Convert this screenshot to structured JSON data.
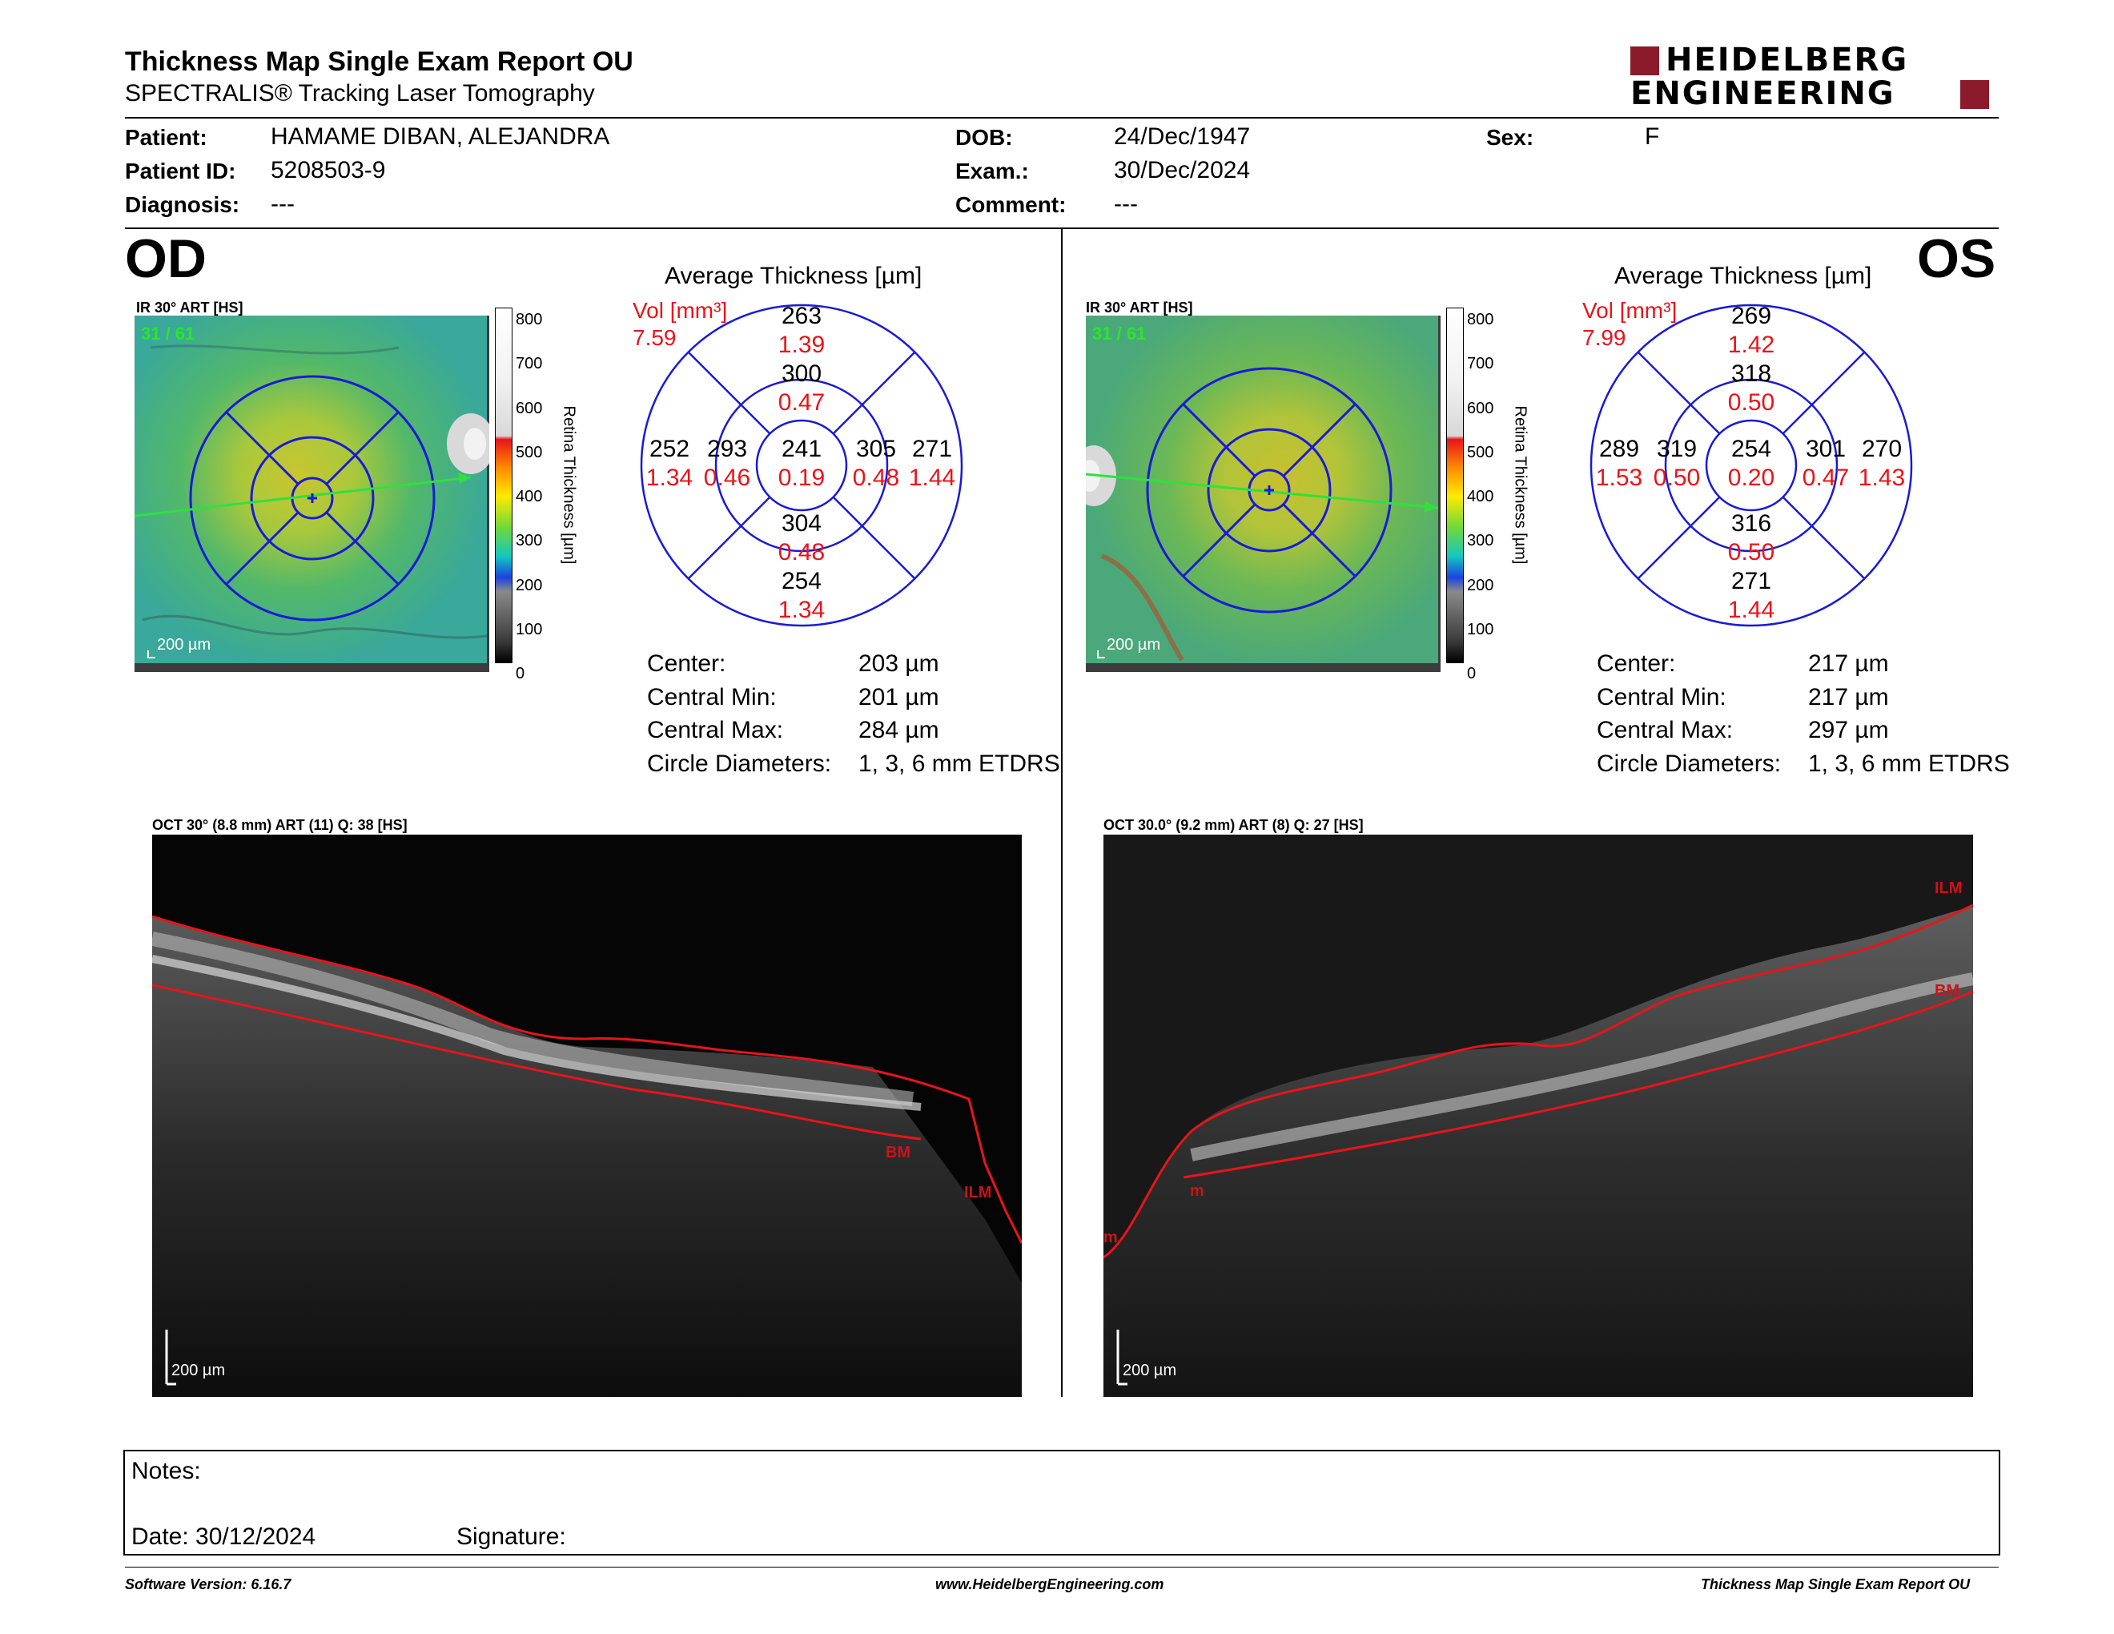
{
  "header": {
    "title": "Thickness Map Single Exam Report OU",
    "subtitle": "SPECTRALIS® Tracking Laser Tomography",
    "logo_line1": "HEIDELBERG",
    "logo_line2": "ENGINEERING",
    "brand_color": "#8b1a2b"
  },
  "patient": {
    "patient_label": "Patient:",
    "patient_value": "HAMAME DIBAN, ALEJANDRA",
    "id_label": "Patient ID:",
    "id_value": "5208503-9",
    "diagnosis_label": "Diagnosis:",
    "diagnosis_value": "---",
    "dob_label": "DOB:",
    "dob_value": "24/Dec/1947",
    "exam_label": "Exam.:",
    "exam_value": "30/Dec/2024",
    "comment_label": "Comment:",
    "comment_value": "---",
    "sex_label": "Sex:",
    "sex_value": "F"
  },
  "colorbar": {
    "ticks": [
      "800",
      "700",
      "600",
      "500",
      "400",
      "300",
      "200",
      "100",
      "0"
    ],
    "label": "Retina Thickness [µm]"
  },
  "od": {
    "eye": "OD",
    "ir_label": "IR 30° ART [HS]",
    "frame_label": "31 / 61",
    "scale": "200 µm",
    "avg_title": "Average Thickness [µm]",
    "vol_label": "Vol [mm³]",
    "vol_value": "7.59",
    "grid": {
      "center": {
        "t": "241",
        "v": "0.19"
      },
      "inner_sup": {
        "t": "300",
        "v": "0.47"
      },
      "inner_inf": {
        "t": "304",
        "v": "0.48"
      },
      "inner_left": {
        "t": "293",
        "v": "0.46"
      },
      "inner_right": {
        "t": "305",
        "v": "0.48"
      },
      "outer_sup": {
        "t": "263",
        "v": "1.39"
      },
      "outer_inf": {
        "t": "254",
        "v": "1.34"
      },
      "outer_left": {
        "t": "252",
        "v": "1.34"
      },
      "outer_right": {
        "t": "271",
        "v": "1.44"
      }
    },
    "stats": [
      {
        "label": "Center:",
        "value": "203 µm"
      },
      {
        "label": "Central Min:",
        "value": "201 µm"
      },
      {
        "label": "Central Max:",
        "value": "284 µm"
      },
      {
        "label": "Circle Diameters:",
        "value": "1, 3, 6 mm ETDRS"
      }
    ],
    "oct_label": "OCT 30° (8.8 mm) ART (11) Q: 38 [HS]",
    "oct_scale": "200 µm",
    "tag_bm": "BM",
    "tag_ilm": "ILM"
  },
  "os": {
    "eye": "OS",
    "ir_label": "IR 30° ART [HS]",
    "frame_label": "31 / 61",
    "scale": "200 µm",
    "avg_title": "Average Thickness [µm]",
    "vol_label": "Vol [mm³]",
    "vol_value": "7.99",
    "grid": {
      "center": {
        "t": "254",
        "v": "0.20"
      },
      "inner_sup": {
        "t": "318",
        "v": "0.50"
      },
      "inner_inf": {
        "t": "316",
        "v": "0.50"
      },
      "inner_left": {
        "t": "319",
        "v": "0.50"
      },
      "inner_right": {
        "t": "301",
        "v": "0.47"
      },
      "outer_sup": {
        "t": "269",
        "v": "1.42"
      },
      "outer_inf": {
        "t": "271",
        "v": "1.44"
      },
      "outer_left": {
        "t": "289",
        "v": "1.53"
      },
      "outer_right": {
        "t": "270",
        "v": "1.43"
      }
    },
    "stats": [
      {
        "label": "Center:",
        "value": "217 µm"
      },
      {
        "label": "Central Min:",
        "value": "217 µm"
      },
      {
        "label": "Central Max:",
        "value": "297 µm"
      },
      {
        "label": "Circle Diameters:",
        "value": "1, 3, 6 mm ETDRS"
      }
    ],
    "oct_label": "OCT 30.0° (9.2 mm) ART (8) Q: 27 [HS]",
    "oct_scale": "200 µm",
    "tag_bm": "BM",
    "tag_ilm": "ILM",
    "tag_m1": "m",
    "tag_m2": "m"
  },
  "notes": {
    "notes_label": "Notes:",
    "date_label": "Date: 30/12/2024",
    "signature_label": "Signature:"
  },
  "footer": {
    "software": "Software Version: 6.16.7",
    "website": "www.HeidelbergEngineering.com",
    "report": "Thickness Map Single Exam Report OU"
  }
}
